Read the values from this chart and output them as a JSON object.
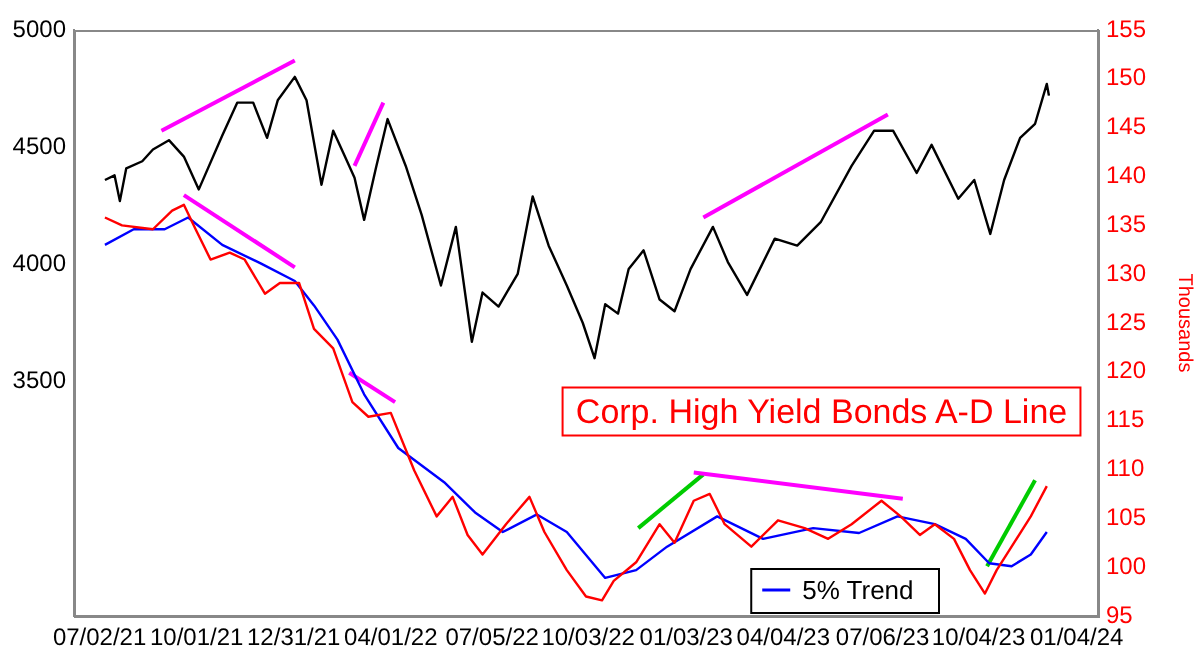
{
  "chart_data": {
    "type": "line",
    "y2label": "Thousands",
    "annotations": [
      "Corp. High Yield Bonds A-D Line"
    ],
    "legend": "bottom right",
    "grid": false,
    "xlim": [
      "2021-06-08",
      "2024-01-24"
    ],
    "xticks": [
      {
        "value": "2021-07-02",
        "label": "07/02/21"
      },
      {
        "value": "2021-10-01",
        "label": "10/01/21"
      },
      {
        "value": "2021-12-31",
        "label": "12/31/21"
      },
      {
        "value": "2022-04-01",
        "label": "04/01/22"
      },
      {
        "value": "2022-07-05",
        "label": "07/05/22"
      },
      {
        "value": "2022-10-03",
        "label": "10/03/22"
      },
      {
        "value": "2023-01-03",
        "label": "01/03/23"
      },
      {
        "value": "2023-04-04",
        "label": "04/04/23"
      },
      {
        "value": "2023-07-06",
        "label": "07/06/23"
      },
      {
        "value": "2023-10-04",
        "label": "10/04/23"
      },
      {
        "value": "2024-01-04",
        "label": "01/04/24"
      }
    ],
    "ylim": [
      2500,
      5000
    ],
    "yticks": [
      3500,
      4000,
      4500,
      5000
    ],
    "y2lim": [
      95,
      155
    ],
    "y2ticks": [
      95,
      100,
      105,
      110,
      115,
      120,
      125,
      130,
      135,
      140,
      145,
      150,
      155
    ],
    "series": [
      {
        "color": "#000000",
        "x": [
          "2021-07-07",
          "2021-07-16",
          "2021-07-21",
          "2021-07-27",
          "2021-08-11",
          "2021-08-21",
          "2021-09-05",
          "2021-09-19",
          "2021-10-03",
          "2021-10-25",
          "2021-11-08",
          "2021-11-23",
          "2021-12-06",
          "2021-12-16",
          "2022-01-01",
          "2022-01-12",
          "2022-01-26",
          "2022-02-06",
          "2022-02-17",
          "2022-02-26",
          "2022-03-07",
          "2022-03-18",
          "2022-03-29",
          "2022-04-15",
          "2022-04-30",
          "2022-05-18",
          "2022-06-01",
          "2022-06-16",
          "2022-06-26",
          "2022-07-11",
          "2022-07-29",
          "2022-08-12",
          "2022-08-27",
          "2022-09-13",
          "2022-09-28",
          "2022-10-09",
          "2022-10-19",
          "2022-10-31",
          "2022-11-10",
          "2022-11-24",
          "2022-12-09",
          "2022-12-23",
          "2023-01-07",
          "2023-01-28",
          "2023-02-11",
          "2023-03-01",
          "2023-03-27",
          "2023-04-17",
          "2023-05-09",
          "2023-06-07",
          "2023-06-28",
          "2023-07-16",
          "2023-08-07",
          "2023-08-21",
          "2023-09-15",
          "2023-09-30",
          "2023-10-15",
          "2023-10-28",
          "2023-11-12",
          "2023-11-26",
          "2023-12-07",
          "2023-12-09"
        ],
        "values": [
          4360,
          4380,
          4270,
          4410,
          4440,
          4490,
          4530,
          4460,
          4320,
          4550,
          4690,
          4690,
          4540,
          4700,
          4800,
          4700,
          4340,
          4570,
          4460,
          4370,
          4190,
          4410,
          4620,
          4420,
          4210,
          3910,
          4160,
          3670,
          3880,
          3820,
          3960,
          4290,
          4080,
          3910,
          3750,
          3600,
          3830,
          3790,
          3980,
          4060,
          3850,
          3800,
          3980,
          4160,
          4010,
          3870,
          4110,
          4080,
          4180,
          4420,
          4570,
          4570,
          4390,
          4510,
          4280,
          4360,
          4130,
          4360,
          4540,
          4600,
          4770,
          4720
        ]
      },
      {
        "color": "#ff0000",
        "axis": "y2",
        "x": [
          "2021-07-07",
          "2021-07-23",
          "2021-08-21",
          "2021-09-08",
          "2021-09-19",
          "2021-09-30",
          "2021-10-14",
          "2021-11-01",
          "2021-11-15",
          "2021-12-04",
          "2021-12-18",
          "2022-01-05",
          "2022-01-19",
          "2022-02-06",
          "2022-02-24",
          "2022-03-11",
          "2022-04-01",
          "2022-04-23",
          "2022-05-14",
          "2022-05-29",
          "2022-06-12",
          "2022-06-26",
          "2022-07-18",
          "2022-08-09",
          "2022-08-23",
          "2022-09-13",
          "2022-10-01",
          "2022-10-16",
          "2022-10-27",
          "2022-11-17",
          "2022-12-09",
          "2022-12-23",
          "2023-01-10",
          "2023-01-25",
          "2023-02-08",
          "2023-03-05",
          "2023-03-30",
          "2023-04-24",
          "2023-05-16",
          "2023-06-07",
          "2023-07-05",
          "2023-07-23",
          "2023-08-10",
          "2023-08-24",
          "2023-09-11",
          "2023-09-26",
          "2023-10-10",
          "2023-10-21",
          "2023-11-04",
          "2023-11-22",
          "2023-12-07"
        ],
        "values": [
          135.8,
          135.0,
          134.6,
          136.5,
          137.1,
          134.6,
          131.5,
          132.2,
          131.5,
          128.0,
          129.1,
          129.1,
          124.4,
          122.4,
          116.9,
          115.4,
          115.8,
          109.9,
          105.2,
          107.2,
          103.3,
          101.3,
          104.4,
          107.2,
          103.6,
          99.7,
          97.0,
          96.6,
          98.6,
          100.5,
          104.4,
          102.5,
          106.8,
          107.5,
          104.4,
          102.1,
          104.8,
          104.0,
          102.9,
          104.4,
          106.8,
          105.2,
          103.3,
          104.4,
          102.9,
          99.7,
          97.3,
          99.7,
          102.1,
          105.2,
          108.3
        ]
      },
      {
        "name": "5% Trend",
        "color": "#0000ff",
        "axis": "y2",
        "x": [
          "2021-07-07",
          "2021-08-03",
          "2021-09-01",
          "2021-09-23",
          "2021-10-25",
          "2021-11-30",
          "2022-01-01",
          "2022-01-19",
          "2022-02-10",
          "2022-03-07",
          "2022-04-08",
          "2022-05-21",
          "2022-06-19",
          "2022-07-15",
          "2022-08-16",
          "2022-09-13",
          "2022-10-19",
          "2022-11-17",
          "2022-12-16",
          "2023-02-01",
          "2023-03-16",
          "2023-05-02",
          "2023-06-14",
          "2023-07-20",
          "2023-08-24",
          "2023-09-22",
          "2023-10-14",
          "2023-11-04",
          "2023-11-22",
          "2023-12-07"
        ],
        "values": [
          133.0,
          134.6,
          134.6,
          135.8,
          133.0,
          131.1,
          129.3,
          126.8,
          123.3,
          117.7,
          112.2,
          108.7,
          105.6,
          103.6,
          105.4,
          103.6,
          98.9,
          99.7,
          102.1,
          105.2,
          102.9,
          104.0,
          103.5,
          105.2,
          104.4,
          102.9,
          100.4,
          100.1,
          101.3,
          103.6
        ]
      },
      {
        "color": "#ff00ff",
        "x": [
          "2021-08-29",
          "2022-01-01"
        ],
        "values": [
          4570,
          4870
        ]
      },
      {
        "color": "#ff00ff",
        "x": [
          "2022-02-26",
          "2022-03-25"
        ],
        "values": [
          4420,
          4690
        ]
      },
      {
        "color": "#ff00ff",
        "x": [
          "2023-01-19",
          "2023-07-11"
        ],
        "values": [
          4200,
          4640
        ]
      },
      {
        "color": "#ff00ff",
        "axis": "y2",
        "x": [
          "2021-09-19",
          "2022-01-01"
        ],
        "values": [
          138.1,
          130.7
        ]
      },
      {
        "color": "#ff00ff",
        "axis": "y2",
        "x": [
          "2022-02-21",
          "2022-04-05"
        ],
        "values": [
          119.9,
          116.9
        ]
      },
      {
        "color": "#ff00ff",
        "axis": "y2",
        "x": [
          "2023-01-10",
          "2023-07-25"
        ],
        "values": [
          109.7,
          107.0
        ]
      },
      {
        "color": "#00cc00",
        "axis": "y2",
        "x": [
          "2022-11-19",
          "2023-01-19"
        ],
        "values": [
          104.0,
          109.5
        ]
      },
      {
        "color": "#00cc00",
        "axis": "y2",
        "x": [
          "2023-10-12",
          "2023-11-26"
        ],
        "values": [
          100.1,
          108.9
        ]
      }
    ]
  }
}
